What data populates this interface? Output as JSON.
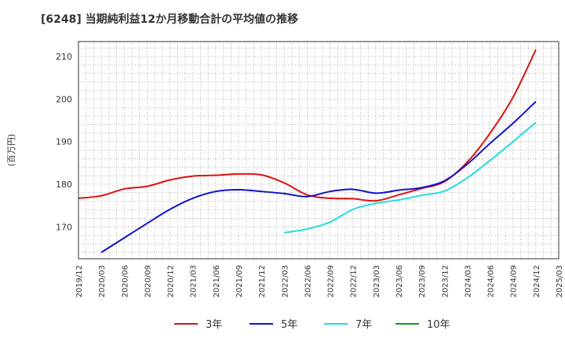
{
  "chart_data": {
    "type": "line",
    "title": "[6248]  当期純利益12か月移動合計の平均値の推移",
    "ylabel": "(百万円)",
    "xlabel": "",
    "ylim": [
      162.5,
      213.5
    ],
    "yticks": [
      170,
      180,
      190,
      200,
      210
    ],
    "x_ticks": [
      "2019/12",
      "2020/03",
      "2020/06",
      "2020/09",
      "2020/12",
      "2021/03",
      "2021/06",
      "2021/09",
      "2021/12",
      "2022/03",
      "2022/06",
      "2022/09",
      "2022/12",
      "2023/03",
      "2023/06",
      "2023/09",
      "2023/12",
      "2024/03",
      "2024/06",
      "2024/09",
      "2024/12",
      "2025/03"
    ],
    "grid": true,
    "legend_position": "bottom",
    "series": [
      {
        "name": "3年",
        "color": "#dd1111",
        "points": [
          [
            "2019/12",
            176.7
          ],
          [
            "2020/03",
            177.3
          ],
          [
            "2020/06",
            178.9
          ],
          [
            "2020/09",
            179.5
          ],
          [
            "2020/12",
            181.0
          ],
          [
            "2021/03",
            181.9
          ],
          [
            "2021/06",
            182.1
          ],
          [
            "2021/09",
            182.4
          ],
          [
            "2021/12",
            182.2
          ],
          [
            "2022/03",
            180.3
          ],
          [
            "2022/06",
            177.5
          ],
          [
            "2022/09",
            176.7
          ],
          [
            "2022/12",
            176.6
          ],
          [
            "2023/03",
            176.1
          ],
          [
            "2023/06",
            177.5
          ],
          [
            "2023/09",
            179.0
          ],
          [
            "2023/12",
            180.6
          ],
          [
            "2024/03",
            185.2
          ],
          [
            "2024/06",
            192.0
          ],
          [
            "2024/09",
            200.4
          ],
          [
            "2024/12",
            211.6
          ]
        ]
      },
      {
        "name": "5年",
        "color": "#1111cc",
        "points": [
          [
            "2020/03",
            164.0
          ],
          [
            "2020/06",
            167.4
          ],
          [
            "2020/09",
            170.8
          ],
          [
            "2020/12",
            174.1
          ],
          [
            "2021/03",
            176.7
          ],
          [
            "2021/06",
            178.3
          ],
          [
            "2021/09",
            178.7
          ],
          [
            "2021/12",
            178.3
          ],
          [
            "2022/03",
            177.8
          ],
          [
            "2022/06",
            177.1
          ],
          [
            "2022/09",
            178.3
          ],
          [
            "2022/12",
            178.8
          ],
          [
            "2023/03",
            177.9
          ],
          [
            "2023/06",
            178.6
          ],
          [
            "2023/09",
            179.2
          ],
          [
            "2023/12",
            180.8
          ],
          [
            "2024/03",
            184.7
          ],
          [
            "2024/06",
            189.6
          ],
          [
            "2024/09",
            194.3
          ],
          [
            "2024/12",
            199.4
          ]
        ]
      },
      {
        "name": "7年",
        "color": "#22dddd",
        "points": [
          [
            "2022/03",
            168.6
          ],
          [
            "2022/06",
            169.5
          ],
          [
            "2022/09",
            171.1
          ],
          [
            "2022/12",
            174.1
          ],
          [
            "2023/03",
            175.5
          ],
          [
            "2023/06",
            176.3
          ],
          [
            "2023/09",
            177.4
          ],
          [
            "2023/12",
            178.4
          ],
          [
            "2024/03",
            181.5
          ],
          [
            "2024/06",
            185.6
          ],
          [
            "2024/09",
            190.0
          ],
          [
            "2024/12",
            194.5
          ]
        ]
      },
      {
        "name": "10年",
        "color": "#119911",
        "points": []
      }
    ]
  }
}
